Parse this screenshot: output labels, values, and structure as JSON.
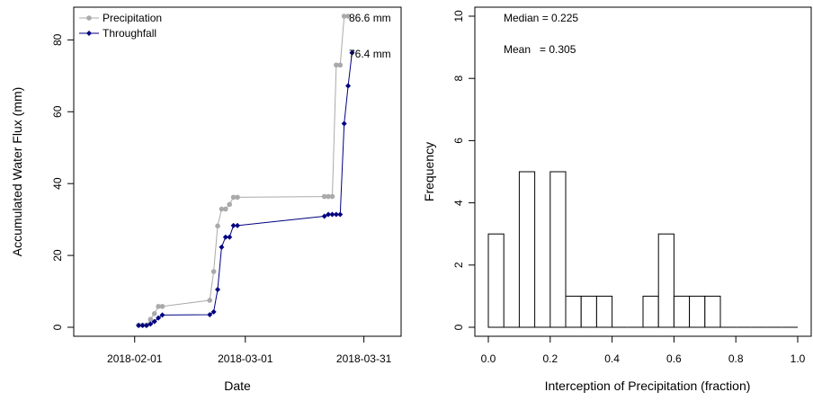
{
  "chart_data": [
    {
      "type": "line",
      "title": "",
      "xlabel": "Date",
      "ylabel": "Accumulated Water Flux (mm)",
      "x_ticks": [
        "2018-02-01",
        "2018-03-01",
        "2018-03-31"
      ],
      "y_ticks": [
        "0",
        "20",
        "40",
        "60",
        "80"
      ],
      "xlim": [
        "2018-01-20",
        "2018-04-06"
      ],
      "ylim": [
        0,
        86.6
      ],
      "legend_position": "top-left",
      "series": [
        {
          "name": "Precipitation",
          "color": "#AAAAAA",
          "marker": "circle",
          "points": [
            [
              "2018-02-02",
              0.6
            ],
            [
              "2018-02-03",
              0.6
            ],
            [
              "2018-02-04",
              0.6
            ],
            [
              "2018-02-05",
              2.2
            ],
            [
              "2018-02-06",
              3.8
            ],
            [
              "2018-02-07",
              5.8
            ],
            [
              "2018-02-08",
              5.8
            ],
            [
              "2018-02-20",
              7.5
            ],
            [
              "2018-02-21",
              15.5
            ],
            [
              "2018-02-22",
              28.2
            ],
            [
              "2018-02-23",
              32.9
            ],
            [
              "2018-02-24",
              32.9
            ],
            [
              "2018-02-25",
              34.2
            ],
            [
              "2018-02-26",
              36.2
            ],
            [
              "2018-02-27",
              36.2
            ],
            [
              "2018-03-21",
              36.4
            ],
            [
              "2018-03-22",
              36.4
            ],
            [
              "2018-03-23",
              36.4
            ],
            [
              "2018-03-24",
              73.0
            ],
            [
              "2018-03-25",
              73.0
            ],
            [
              "2018-03-26",
              86.6
            ],
            [
              "2018-03-27",
              86.6
            ]
          ]
        },
        {
          "name": "Throughfall",
          "color": "#000080",
          "marker": "diamond",
          "points": [
            [
              "2018-02-02",
              0.5
            ],
            [
              "2018-02-03",
              0.5
            ],
            [
              "2018-02-04",
              0.5
            ],
            [
              "2018-02-05",
              0.9
            ],
            [
              "2018-02-06",
              1.6
            ],
            [
              "2018-02-07",
              2.6
            ],
            [
              "2018-02-08",
              3.4
            ],
            [
              "2018-02-20",
              3.5
            ],
            [
              "2018-02-21",
              4.3
            ],
            [
              "2018-02-22",
              10.5
            ],
            [
              "2018-02-23",
              22.3
            ],
            [
              "2018-02-24",
              25.1
            ],
            [
              "2018-02-25",
              25.1
            ],
            [
              "2018-02-26",
              28.3
            ],
            [
              "2018-02-27",
              28.3
            ],
            [
              "2018-03-21",
              30.9
            ],
            [
              "2018-03-22",
              31.4
            ],
            [
              "2018-03-23",
              31.4
            ],
            [
              "2018-03-24",
              31.4
            ],
            [
              "2018-03-25",
              31.4
            ],
            [
              "2018-03-26",
              56.7
            ],
            [
              "2018-03-27",
              67.2
            ],
            [
              "2018-03-28",
              76.4
            ]
          ]
        }
      ],
      "annotations": [
        "86.6 mm",
        "76.4 mm"
      ]
    },
    {
      "type": "bar",
      "title": "",
      "xlabel": "Interception of Precipitation (fraction)",
      "ylabel": "Frequency",
      "x_ticks": [
        "0.0",
        "0.2",
        "0.4",
        "0.6",
        "0.8",
        "1.0"
      ],
      "y_ticks": [
        "0",
        "2",
        "4",
        "6",
        "8",
        "10"
      ],
      "xlim": [
        0,
        1
      ],
      "ylim": [
        0,
        10
      ],
      "bin_width": 0.05,
      "counts": [
        3,
        0,
        5,
        0,
        5,
        1,
        1,
        1,
        0,
        0,
        1,
        3,
        1,
        1,
        1,
        0,
        0,
        0,
        0,
        0
      ],
      "annotations": [
        "Median = 0.225",
        "Mean   = 0.305"
      ]
    }
  ]
}
